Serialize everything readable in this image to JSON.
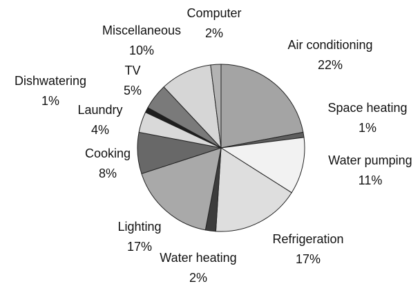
{
  "chart_data": {
    "type": "pie",
    "categories": [
      "Air conditioning",
      "Space heating",
      "Water pumping",
      "Refrigeration",
      "Water heating",
      "Lighting",
      "Cooking",
      "Laundry",
      "Dishwatering",
      "TV",
      "Miscellaneous",
      "Computer"
    ],
    "values": [
      22,
      1,
      11,
      17,
      2,
      17,
      8,
      4,
      1,
      5,
      10,
      2
    ],
    "value_labels": [
      "22%",
      "1%",
      "11%",
      "17%",
      "2%",
      "17%",
      "8%",
      "4%",
      "1%",
      "5%",
      "10%",
      "2%"
    ],
    "colors": [
      "#a4a4a4",
      "#5e5e5e",
      "#f2f2f2",
      "#dedede",
      "#3c3c3c",
      "#a9a9a9",
      "#686868",
      "#d9d9d9",
      "#1e1e1e",
      "#7a7a7a",
      "#d6d6d6",
      "#b3b3b3"
    ]
  }
}
